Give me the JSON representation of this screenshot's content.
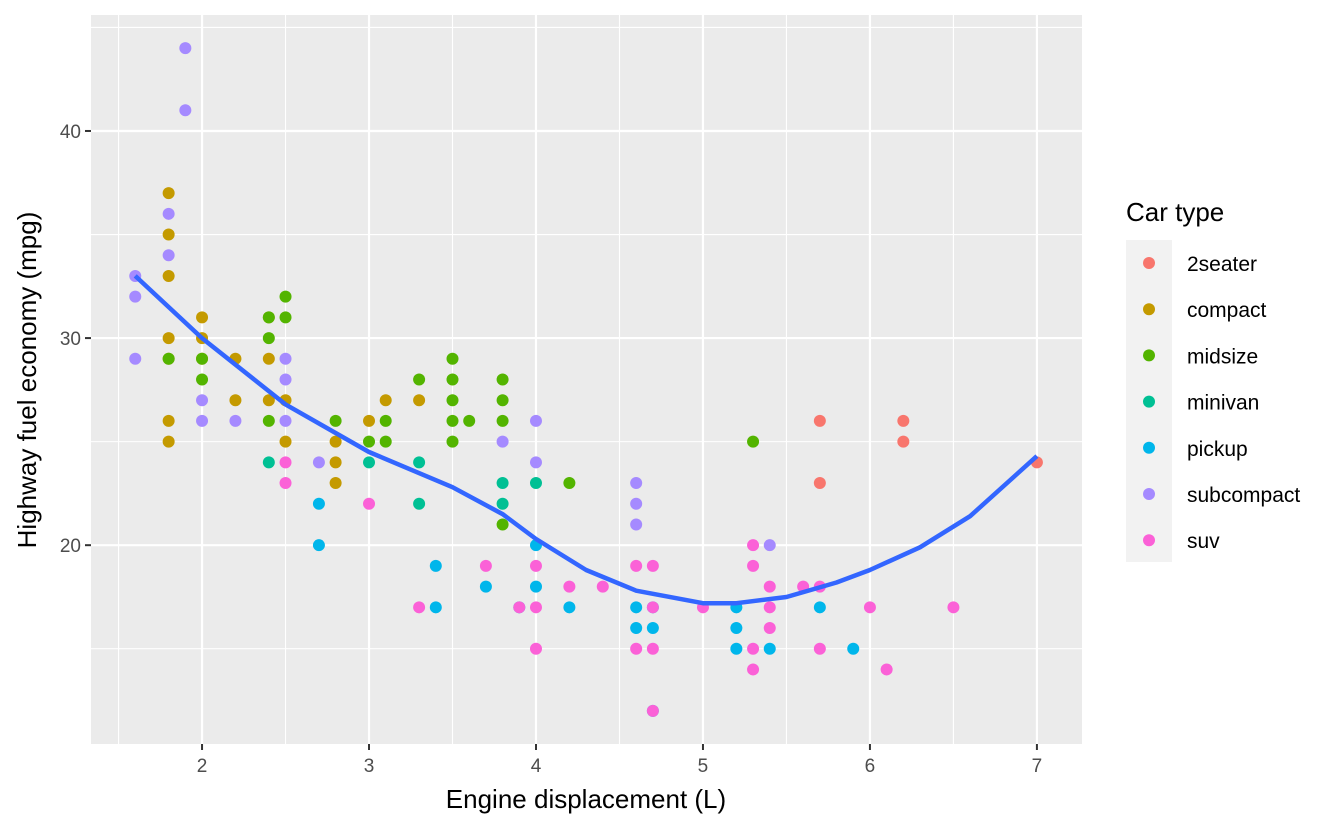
{
  "chart_data": {
    "type": "scatter",
    "xlabel": "Engine displacement (L)",
    "ylabel": "Highway fuel economy (mpg)",
    "xlim": [
      1.335,
      7.27
    ],
    "ylim": [
      10.4,
      45.6
    ],
    "xticks": [
      2,
      3,
      4,
      5,
      6,
      7
    ],
    "yticks": [
      20,
      30,
      40
    ],
    "grid": true,
    "legend": {
      "title": "Car type",
      "placement": "right"
    },
    "series": [
      {
        "name": "2seater",
        "color": "#F8766D",
        "points": [
          [
            5.7,
            26
          ],
          [
            5.7,
            23
          ],
          [
            6.2,
            26
          ],
          [
            6.2,
            25
          ],
          [
            7.0,
            24
          ]
        ]
      },
      {
        "name": "compact",
        "color": "#C49A00",
        "points": [
          [
            1.8,
            37
          ],
          [
            1.8,
            35
          ],
          [
            1.8,
            33
          ],
          [
            1.8,
            30
          ],
          [
            1.8,
            29
          ],
          [
            1.8,
            26
          ],
          [
            1.8,
            25
          ],
          [
            2.0,
            31
          ],
          [
            2.0,
            30
          ],
          [
            2.0,
            29
          ],
          [
            2.2,
            29
          ],
          [
            2.2,
            27
          ],
          [
            2.4,
            31
          ],
          [
            2.4,
            29
          ],
          [
            2.4,
            27
          ],
          [
            2.5,
            27
          ],
          [
            2.5,
            25
          ],
          [
            2.8,
            25
          ],
          [
            2.8,
            24
          ],
          [
            2.8,
            23
          ],
          [
            3.0,
            26
          ],
          [
            3.1,
            27
          ],
          [
            3.3,
            27
          ]
        ]
      },
      {
        "name": "midsize",
        "color": "#53B400",
        "points": [
          [
            1.8,
            29
          ],
          [
            2.0,
            29
          ],
          [
            2.0,
            28
          ],
          [
            2.4,
            31
          ],
          [
            2.4,
            30
          ],
          [
            2.4,
            26
          ],
          [
            2.5,
            32
          ],
          [
            2.5,
            31
          ],
          [
            2.8,
            26
          ],
          [
            3.0,
            25
          ],
          [
            3.1,
            26
          ],
          [
            3.1,
            25
          ],
          [
            3.3,
            28
          ],
          [
            3.5,
            29
          ],
          [
            3.5,
            28
          ],
          [
            3.5,
            27
          ],
          [
            3.5,
            26
          ],
          [
            3.5,
            25
          ],
          [
            3.6,
            26
          ],
          [
            3.8,
            28
          ],
          [
            3.8,
            27
          ],
          [
            3.8,
            26
          ],
          [
            3.8,
            21
          ],
          [
            4.2,
            23
          ],
          [
            5.3,
            25
          ]
        ]
      },
      {
        "name": "minivan",
        "color": "#00C094",
        "points": [
          [
            2.4,
            24
          ],
          [
            3.0,
            24
          ],
          [
            3.3,
            24
          ],
          [
            3.3,
            22
          ],
          [
            3.8,
            23
          ],
          [
            3.8,
            22
          ],
          [
            4.0,
            23
          ]
        ]
      },
      {
        "name": "pickup",
        "color": "#00B6EB",
        "points": [
          [
            2.7,
            22
          ],
          [
            2.7,
            20
          ],
          [
            3.4,
            19
          ],
          [
            3.4,
            17
          ],
          [
            3.7,
            18
          ],
          [
            3.9,
            17
          ],
          [
            4.0,
            20
          ],
          [
            4.0,
            18
          ],
          [
            4.2,
            17
          ],
          [
            4.6,
            17
          ],
          [
            4.6,
            16
          ],
          [
            4.7,
            17
          ],
          [
            4.7,
            16
          ],
          [
            4.7,
            12
          ],
          [
            5.2,
            17
          ],
          [
            5.2,
            16
          ],
          [
            5.2,
            15
          ],
          [
            5.4,
            15
          ],
          [
            5.7,
            17
          ],
          [
            5.9,
            15
          ]
        ]
      },
      {
        "name": "subcompact",
        "color": "#A58AFF",
        "points": [
          [
            1.6,
            33
          ],
          [
            1.6,
            32
          ],
          [
            1.6,
            29
          ],
          [
            1.8,
            36
          ],
          [
            1.8,
            34
          ],
          [
            1.9,
            44
          ],
          [
            1.9,
            41
          ],
          [
            2.0,
            27
          ],
          [
            2.0,
            26
          ],
          [
            2.2,
            26
          ],
          [
            2.5,
            29
          ],
          [
            2.5,
            28
          ],
          [
            2.5,
            26
          ],
          [
            2.7,
            24
          ],
          [
            3.8,
            25
          ],
          [
            4.0,
            26
          ],
          [
            4.0,
            24
          ],
          [
            4.6,
            23
          ],
          [
            4.6,
            22
          ],
          [
            4.6,
            21
          ],
          [
            5.4,
            20
          ]
        ]
      },
      {
        "name": "suv",
        "color": "#FB61D7",
        "points": [
          [
            2.5,
            24
          ],
          [
            2.5,
            23
          ],
          [
            3.0,
            22
          ],
          [
            3.3,
            17
          ],
          [
            3.7,
            19
          ],
          [
            3.9,
            17
          ],
          [
            4.0,
            19
          ],
          [
            4.0,
            17
          ],
          [
            4.0,
            15
          ],
          [
            4.2,
            18
          ],
          [
            4.4,
            18
          ],
          [
            4.6,
            19
          ],
          [
            4.6,
            15
          ],
          [
            4.7,
            19
          ],
          [
            4.7,
            17
          ],
          [
            4.7,
            15
          ],
          [
            4.7,
            12
          ],
          [
            5.0,
            17
          ],
          [
            5.3,
            20
          ],
          [
            5.3,
            19
          ],
          [
            5.3,
            15
          ],
          [
            5.3,
            14
          ],
          [
            5.4,
            18
          ],
          [
            5.4,
            17
          ],
          [
            5.4,
            16
          ],
          [
            5.6,
            18
          ],
          [
            5.7,
            18
          ],
          [
            5.7,
            15
          ],
          [
            6.0,
            17
          ],
          [
            6.1,
            14
          ],
          [
            6.5,
            17
          ]
        ]
      }
    ],
    "smooth": {
      "color": "#3366FF",
      "points": [
        [
          1.6,
          33
        ],
        [
          2.0,
          30
        ],
        [
          2.5,
          26.8
        ],
        [
          3.0,
          24.5
        ],
        [
          3.5,
          22.8
        ],
        [
          3.8,
          21.5
        ],
        [
          4.0,
          20.3
        ],
        [
          4.3,
          18.8
        ],
        [
          4.6,
          17.8
        ],
        [
          5.0,
          17.2
        ],
        [
          5.2,
          17.2
        ],
        [
          5.5,
          17.5
        ],
        [
          5.8,
          18.2
        ],
        [
          6.0,
          18.8
        ],
        [
          6.3,
          19.9
        ],
        [
          6.6,
          21.4
        ],
        [
          7.0,
          24.3
        ]
      ]
    }
  }
}
